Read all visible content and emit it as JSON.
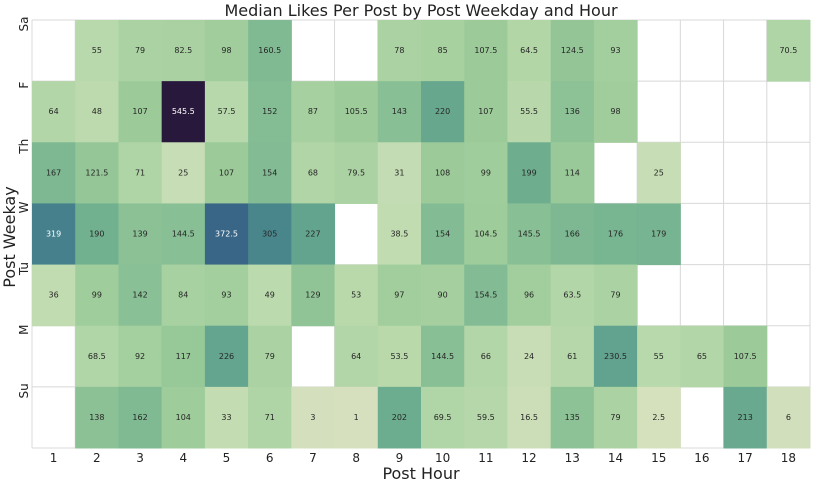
{
  "chart_data": {
    "type": "heatmap",
    "title": "Median Likes Per Post by Post Weekday and Hour",
    "xlabel": "Post Hour",
    "ylabel": "Post Weekay",
    "x_categories": [
      "1",
      "2",
      "3",
      "4",
      "5",
      "6",
      "7",
      "8",
      "9",
      "10",
      "11",
      "12",
      "13",
      "14",
      "15",
      "16",
      "17",
      "18"
    ],
    "y_categories": [
      "Sa",
      "F",
      "Th",
      "W",
      "Tu",
      "M",
      "Su"
    ],
    "y_tick_labels": [
      "Sa",
      "F",
      "Th",
      "W",
      "Tu",
      "M",
      "Su"
    ],
    "values": [
      [
        null,
        55,
        79,
        82.5,
        98,
        160.5,
        null,
        null,
        78,
        85,
        107.5,
        64.5,
        124.5,
        93,
        null,
        null,
        null,
        70.5
      ],
      [
        64,
        48,
        107,
        545.5,
        57.5,
        152,
        87,
        105.5,
        143,
        220,
        107,
        55.5,
        136,
        98,
        null,
        null,
        null,
        null
      ],
      [
        167,
        121.5,
        71,
        25,
        107,
        154,
        68,
        79.5,
        31,
        108,
        99,
        199,
        114,
        null,
        25,
        null,
        null,
        null
      ],
      [
        319,
        190,
        139,
        144.5,
        372.5,
        305,
        227,
        null,
        38.5,
        154,
        104.5,
        145.5,
        166,
        176,
        179,
        null,
        null,
        null
      ],
      [
        36,
        99,
        142,
        84,
        93,
        49,
        129,
        53,
        97,
        90,
        154.5,
        96,
        63.5,
        79,
        null,
        null,
        null,
        null
      ],
      [
        null,
        68.5,
        92,
        117,
        226,
        79,
        null,
        64,
        53.5,
        144.5,
        66,
        24,
        61,
        230.5,
        55,
        65,
        107.5,
        null
      ],
      [
        null,
        138,
        162,
        104,
        33,
        71,
        3,
        1,
        202,
        69.5,
        59.5,
        16.5,
        135,
        79,
        2.5,
        null,
        213,
        6
      ]
    ],
    "value_labels": [
      [
        null,
        "55",
        "79",
        "82.5",
        "98",
        "160.5",
        null,
        null,
        "78",
        "85",
        "107.5",
        "64.5",
        "124.5",
        "93",
        null,
        null,
        null,
        "70.5"
      ],
      [
        "64",
        "48",
        "107",
        "545.5",
        "57.5",
        "152",
        "87",
        "105.5",
        "143",
        "220",
        "107",
        "55.5",
        "136",
        "98",
        null,
        null,
        null,
        null
      ],
      [
        "167",
        "121.5",
        "71",
        "25",
        "107",
        "154",
        "68",
        "79.5",
        "31",
        "108",
        "99",
        "199",
        "114",
        null,
        "25",
        null,
        null,
        null
      ],
      [
        "319",
        "190",
        "139",
        "144.5",
        "372.5",
        "305",
        "227",
        null,
        "38.5",
        "154",
        "104.5",
        "145.5",
        "166",
        "176",
        "179",
        null,
        null,
        null
      ],
      [
        "36",
        "99",
        "142",
        "84",
        "93",
        "49",
        "129",
        "53",
        "97",
        "90",
        "154.5",
        "96",
        "63.5",
        "79",
        null,
        null,
        null,
        null
      ],
      [
        null,
        "68.5",
        "92",
        "117",
        "226",
        "79",
        null,
        "64",
        "53.5",
        "144.5",
        "66",
        "24",
        "61",
        "230.5",
        "55",
        "65",
        "107.5",
        null
      ],
      [
        null,
        "138",
        "162",
        "104",
        "33",
        "71",
        "3",
        "1",
        "202",
        "69.5",
        "59.5",
        "16.5",
        "135",
        "79",
        "2.5",
        null,
        "213",
        "6"
      ]
    ],
    "colormap": "crest",
    "grid": true,
    "colorbar": false,
    "legend": "none"
  }
}
